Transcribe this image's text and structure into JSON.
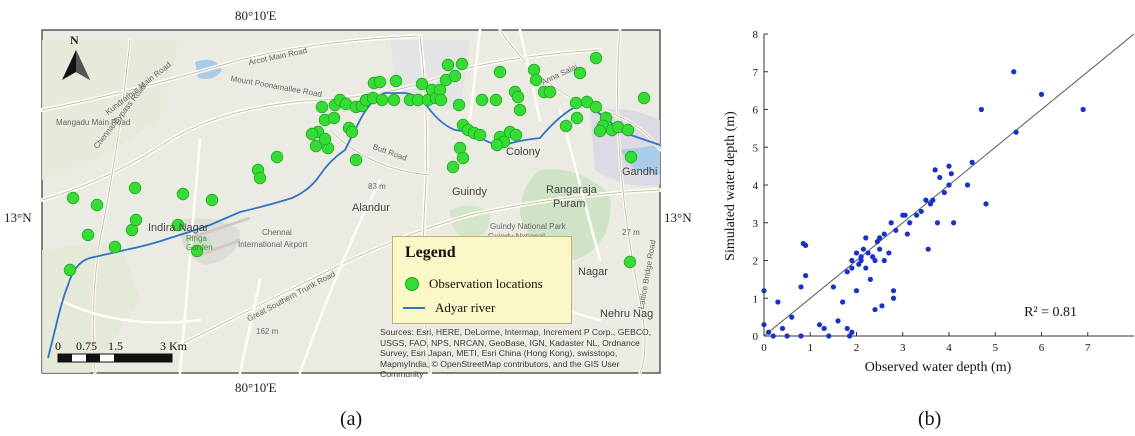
{
  "panels": {
    "a": "(a)",
    "b": "(b)"
  },
  "map": {
    "legend": {
      "title": "Legend",
      "items": [
        {
          "label": "Observation locations",
          "color": "#33dd33"
        },
        {
          "label": "Adyar river",
          "color": "#2f74c8"
        }
      ]
    },
    "north_label": "N",
    "coords": {
      "top": "80°10'E",
      "bottom": "80°10'E",
      "left": "13°N",
      "right": "13°N"
    },
    "scalebar": {
      "labels": [
        "0",
        "0.75",
        "1.5",
        "3 Km"
      ]
    },
    "attribution": "Sources: Esri, HERE, DeLorme, Intermap, Increment P Corp., GEBCO, USGS, FAO, NPS, NRCAN, GeoBase, IGN, Kadaster NL, Ordnance Survey, Esri Japan, METI, Esri China (Hong Kong), swisstopo, MapmyIndia, © OpenStreetMap contributors, and the GIS User Community",
    "places": {
      "indira": "Indira Nagar",
      "alandur": "Alandur",
      "guindy": "Guindy",
      "rangaraja": "Rangaraja",
      "puram": "Puram",
      "gandhi": "Gandhi",
      "colony": "Colony",
      "nehru": "Nehru Nag",
      "airport": "Chennai",
      "airport2": "International Airport",
      "park": "Guindy National Park",
      "park2": "Guindy National Childrens Park",
      "arcot": "Arcot Main Road",
      "mount": "Mount Poonamallee Road",
      "gst": "Great Southern Trunk Road",
      "kundrathur": "Kundrathur Main Road",
      "chennai_bypass": "Chennai Bypass Road",
      "mangadu": "Mangadu Main Road",
      "elev83": "83 m",
      "elev162": "162 m",
      "anna": "Anna Salai",
      "lattice": "Lattice Bridge Road",
      "butt": "Butt Road",
      "ringa": "Ringa Garden",
      "nagar": "Nagar",
      "elev27": "27 m"
    },
    "points_color": "#33dd33"
  },
  "chart_data": {
    "type": "scatter",
    "xlabel": "Observed water depth (m)",
    "ylabel": "Simulated water depth (m)",
    "xlim": [
      0,
      8
    ],
    "ylim": [
      0,
      8
    ],
    "xticks": [
      0,
      1,
      2,
      3,
      4,
      5,
      6,
      7
    ],
    "yticks": [
      0,
      1,
      2,
      3,
      4,
      5,
      6,
      7,
      8
    ],
    "annotation": "R² = 0.81",
    "reference_line": "1:1",
    "point_color": "#1530d8",
    "line_color": "#555555",
    "points": [
      [
        0.0,
        1.2
      ],
      [
        0.0,
        0.3
      ],
      [
        0.1,
        0.1
      ],
      [
        0.2,
        0.0
      ],
      [
        0.3,
        0.9
      ],
      [
        0.4,
        0.2
      ],
      [
        0.5,
        0.0
      ],
      [
        0.6,
        0.5
      ],
      [
        0.8,
        0.0
      ],
      [
        0.8,
        1.3
      ],
      [
        0.9,
        1.6
      ],
      [
        0.9,
        2.4
      ],
      [
        0.85,
        2.45
      ],
      [
        1.2,
        0.3
      ],
      [
        1.3,
        0.2
      ],
      [
        1.4,
        0.0
      ],
      [
        1.5,
        1.3
      ],
      [
        1.6,
        0.4
      ],
      [
        1.7,
        0.9
      ],
      [
        1.8,
        0.2
      ],
      [
        1.8,
        1.7
      ],
      [
        1.85,
        0.0
      ],
      [
        1.9,
        0.1
      ],
      [
        1.9,
        1.8
      ],
      [
        1.9,
        2.0
      ],
      [
        2.0,
        1.2
      ],
      [
        2.0,
        2.2
      ],
      [
        2.05,
        1.9
      ],
      [
        2.1,
        2.0
      ],
      [
        2.1,
        2.1
      ],
      [
        2.15,
        2.3
      ],
      [
        2.2,
        2.6
      ],
      [
        2.2,
        1.8
      ],
      [
        2.25,
        2.2
      ],
      [
        2.3,
        1.5
      ],
      [
        2.35,
        2.1
      ],
      [
        2.4,
        2.0
      ],
      [
        2.4,
        0.7
      ],
      [
        2.45,
        2.5
      ],
      [
        2.5,
        2.6
      ],
      [
        2.5,
        2.3
      ],
      [
        2.55,
        0.8
      ],
      [
        2.6,
        2.7
      ],
      [
        2.6,
        2.0
      ],
      [
        2.7,
        2.2
      ],
      [
        2.75,
        3.0
      ],
      [
        2.8,
        1.2
      ],
      [
        2.8,
        1.0
      ],
      [
        2.85,
        2.8
      ],
      [
        3.0,
        3.2
      ],
      [
        3.05,
        3.2
      ],
      [
        3.1,
        2.7
      ],
      [
        3.15,
        3.0
      ],
      [
        3.3,
        3.2
      ],
      [
        3.4,
        3.3
      ],
      [
        3.5,
        3.6
      ],
      [
        3.55,
        2.3
      ],
      [
        3.6,
        3.5
      ],
      [
        3.65,
        3.6
      ],
      [
        3.7,
        4.4
      ],
      [
        3.75,
        3.0
      ],
      [
        3.8,
        4.2
      ],
      [
        3.9,
        3.8
      ],
      [
        4.0,
        4.5
      ],
      [
        4.0,
        4.0
      ],
      [
        4.05,
        4.3
      ],
      [
        4.1,
        3.0
      ],
      [
        4.4,
        4.0
      ],
      [
        4.5,
        4.6
      ],
      [
        4.7,
        6.0
      ],
      [
        4.8,
        3.5
      ],
      [
        5.4,
        7.0
      ],
      [
        5.45,
        5.4
      ],
      [
        6.0,
        6.4
      ],
      [
        6.9,
        6.0
      ]
    ]
  }
}
